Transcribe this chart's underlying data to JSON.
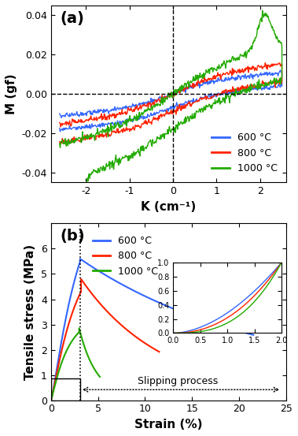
{
  "panel_a": {
    "title": "(a)",
    "xlabel": "K (cm⁻¹)",
    "ylabel": "M (gf)",
    "xlim": [
      -2.8,
      2.6
    ],
    "ylim": [
      -0.045,
      0.045
    ],
    "xticks": [
      -2,
      -1,
      0,
      1,
      2
    ],
    "yticks": [
      -0.04,
      -0.02,
      0.0,
      0.02,
      0.04
    ],
    "colors": {
      "600": "#3366ff",
      "800": "#ff2200",
      "1000": "#22aa00"
    },
    "legend_labels": [
      "600 °C",
      "800 °C",
      "1000 °C"
    ]
  },
  "panel_b": {
    "title": "(b)",
    "xlabel": "Strain (%)",
    "ylabel": "Tensile stress (MPa)",
    "xlim": [
      0,
      25
    ],
    "ylim": [
      0,
      7
    ],
    "xticks": [
      0,
      5,
      10,
      15,
      20,
      25
    ],
    "yticks": [
      0,
      1,
      2,
      3,
      4,
      5,
      6
    ],
    "colors": {
      "600": "#3366ff",
      "800": "#ff2200",
      "1000": "#22aa00"
    },
    "legend_labels": [
      "600 °C",
      "800 °C",
      "1000 °C"
    ],
    "annotation": "Slipping process",
    "inset": {
      "xlim": [
        0,
        2.0
      ],
      "ylim": [
        0,
        1.0
      ],
      "xticks": [
        0.0,
        0.5,
        1.0,
        1.5,
        2.0
      ],
      "yticks": [
        0.0,
        0.2,
        0.4,
        0.6,
        0.8,
        1.0
      ]
    }
  }
}
